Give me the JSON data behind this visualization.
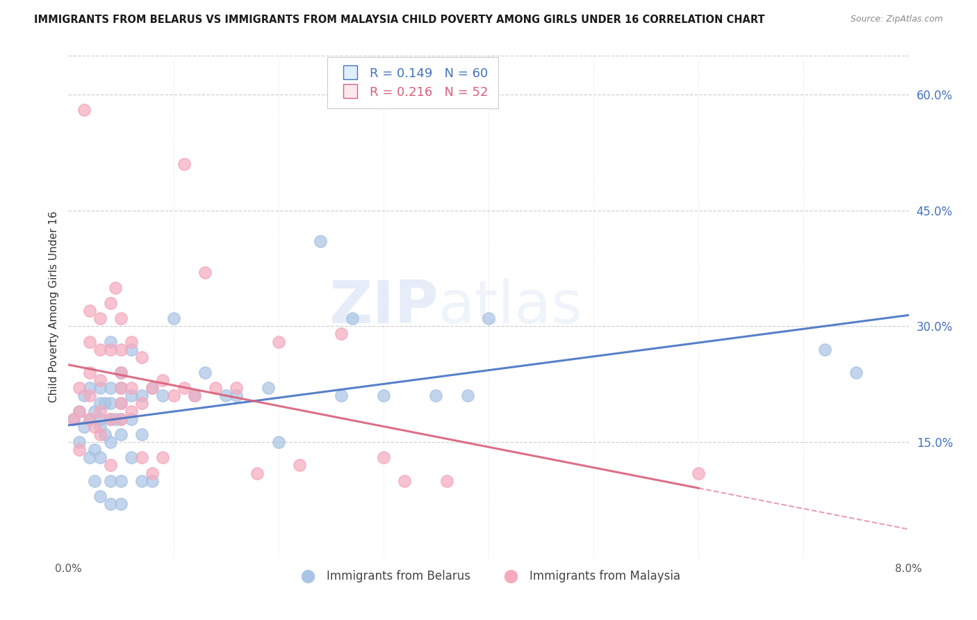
{
  "title": "IMMIGRANTS FROM BELARUS VS IMMIGRANTS FROM MALAYSIA CHILD POVERTY AMONG GIRLS UNDER 16 CORRELATION CHART",
  "source": "Source: ZipAtlas.com",
  "ylabel": "Child Poverty Among Girls Under 16",
  "right_yticks": [
    0.15,
    0.3,
    0.45,
    0.6
  ],
  "right_ytick_labels": [
    "15.0%",
    "30.0%",
    "45.0%",
    "60.0%"
  ],
  "xlim": [
    0.0,
    0.08
  ],
  "ylim": [
    0.0,
    0.65
  ],
  "belarus_color": "#aac4e4",
  "malaysia_color": "#f5aabe",
  "belarus_line_color": "#4472c4",
  "malaysia_line_color": "#d95f7a",
  "legend_r_belarus": "R = 0.149",
  "legend_n_belarus": "N = 60",
  "legend_r_malaysia": "R = 0.216",
  "legend_n_malaysia": "N = 52",
  "legend_label_belarus": "Immigrants from Belarus",
  "legend_label_malaysia": "Immigrants from Malaysia",
  "watermark": "ZIPatlas",
  "belarus_x": [
    0.0005,
    0.001,
    0.001,
    0.0015,
    0.0015,
    0.002,
    0.002,
    0.002,
    0.0025,
    0.0025,
    0.0025,
    0.003,
    0.003,
    0.003,
    0.003,
    0.003,
    0.003,
    0.0035,
    0.0035,
    0.004,
    0.004,
    0.004,
    0.004,
    0.004,
    0.004,
    0.004,
    0.0045,
    0.005,
    0.005,
    0.005,
    0.005,
    0.005,
    0.005,
    0.005,
    0.006,
    0.006,
    0.006,
    0.006,
    0.007,
    0.007,
    0.007,
    0.008,
    0.008,
    0.009,
    0.01,
    0.012,
    0.013,
    0.015,
    0.016,
    0.019,
    0.02,
    0.024,
    0.026,
    0.027,
    0.03,
    0.035,
    0.038,
    0.04,
    0.072,
    0.075
  ],
  "belarus_y": [
    0.18,
    0.15,
    0.19,
    0.17,
    0.21,
    0.13,
    0.18,
    0.22,
    0.1,
    0.14,
    0.19,
    0.08,
    0.13,
    0.17,
    0.18,
    0.2,
    0.22,
    0.16,
    0.2,
    0.07,
    0.1,
    0.15,
    0.18,
    0.2,
    0.22,
    0.28,
    0.18,
    0.07,
    0.1,
    0.16,
    0.18,
    0.2,
    0.22,
    0.24,
    0.13,
    0.18,
    0.21,
    0.27,
    0.1,
    0.16,
    0.21,
    0.1,
    0.22,
    0.21,
    0.31,
    0.21,
    0.24,
    0.21,
    0.21,
    0.22,
    0.15,
    0.41,
    0.21,
    0.31,
    0.21,
    0.21,
    0.21,
    0.31,
    0.27,
    0.24
  ],
  "malaysia_x": [
    0.0005,
    0.001,
    0.001,
    0.001,
    0.0015,
    0.002,
    0.002,
    0.002,
    0.002,
    0.002,
    0.0025,
    0.003,
    0.003,
    0.003,
    0.003,
    0.003,
    0.004,
    0.004,
    0.004,
    0.004,
    0.0045,
    0.005,
    0.005,
    0.005,
    0.005,
    0.005,
    0.005,
    0.006,
    0.006,
    0.006,
    0.007,
    0.007,
    0.007,
    0.008,
    0.008,
    0.009,
    0.009,
    0.01,
    0.011,
    0.011,
    0.012,
    0.013,
    0.014,
    0.016,
    0.018,
    0.02,
    0.022,
    0.026,
    0.03,
    0.032,
    0.036,
    0.06
  ],
  "malaysia_y": [
    0.18,
    0.14,
    0.19,
    0.22,
    0.58,
    0.18,
    0.21,
    0.24,
    0.28,
    0.32,
    0.17,
    0.16,
    0.19,
    0.23,
    0.27,
    0.31,
    0.12,
    0.18,
    0.27,
    0.33,
    0.35,
    0.18,
    0.2,
    0.22,
    0.24,
    0.27,
    0.31,
    0.19,
    0.22,
    0.28,
    0.13,
    0.2,
    0.26,
    0.11,
    0.22,
    0.13,
    0.23,
    0.21,
    0.22,
    0.51,
    0.21,
    0.37,
    0.22,
    0.22,
    0.11,
    0.28,
    0.12,
    0.29,
    0.13,
    0.1,
    0.1,
    0.11
  ]
}
